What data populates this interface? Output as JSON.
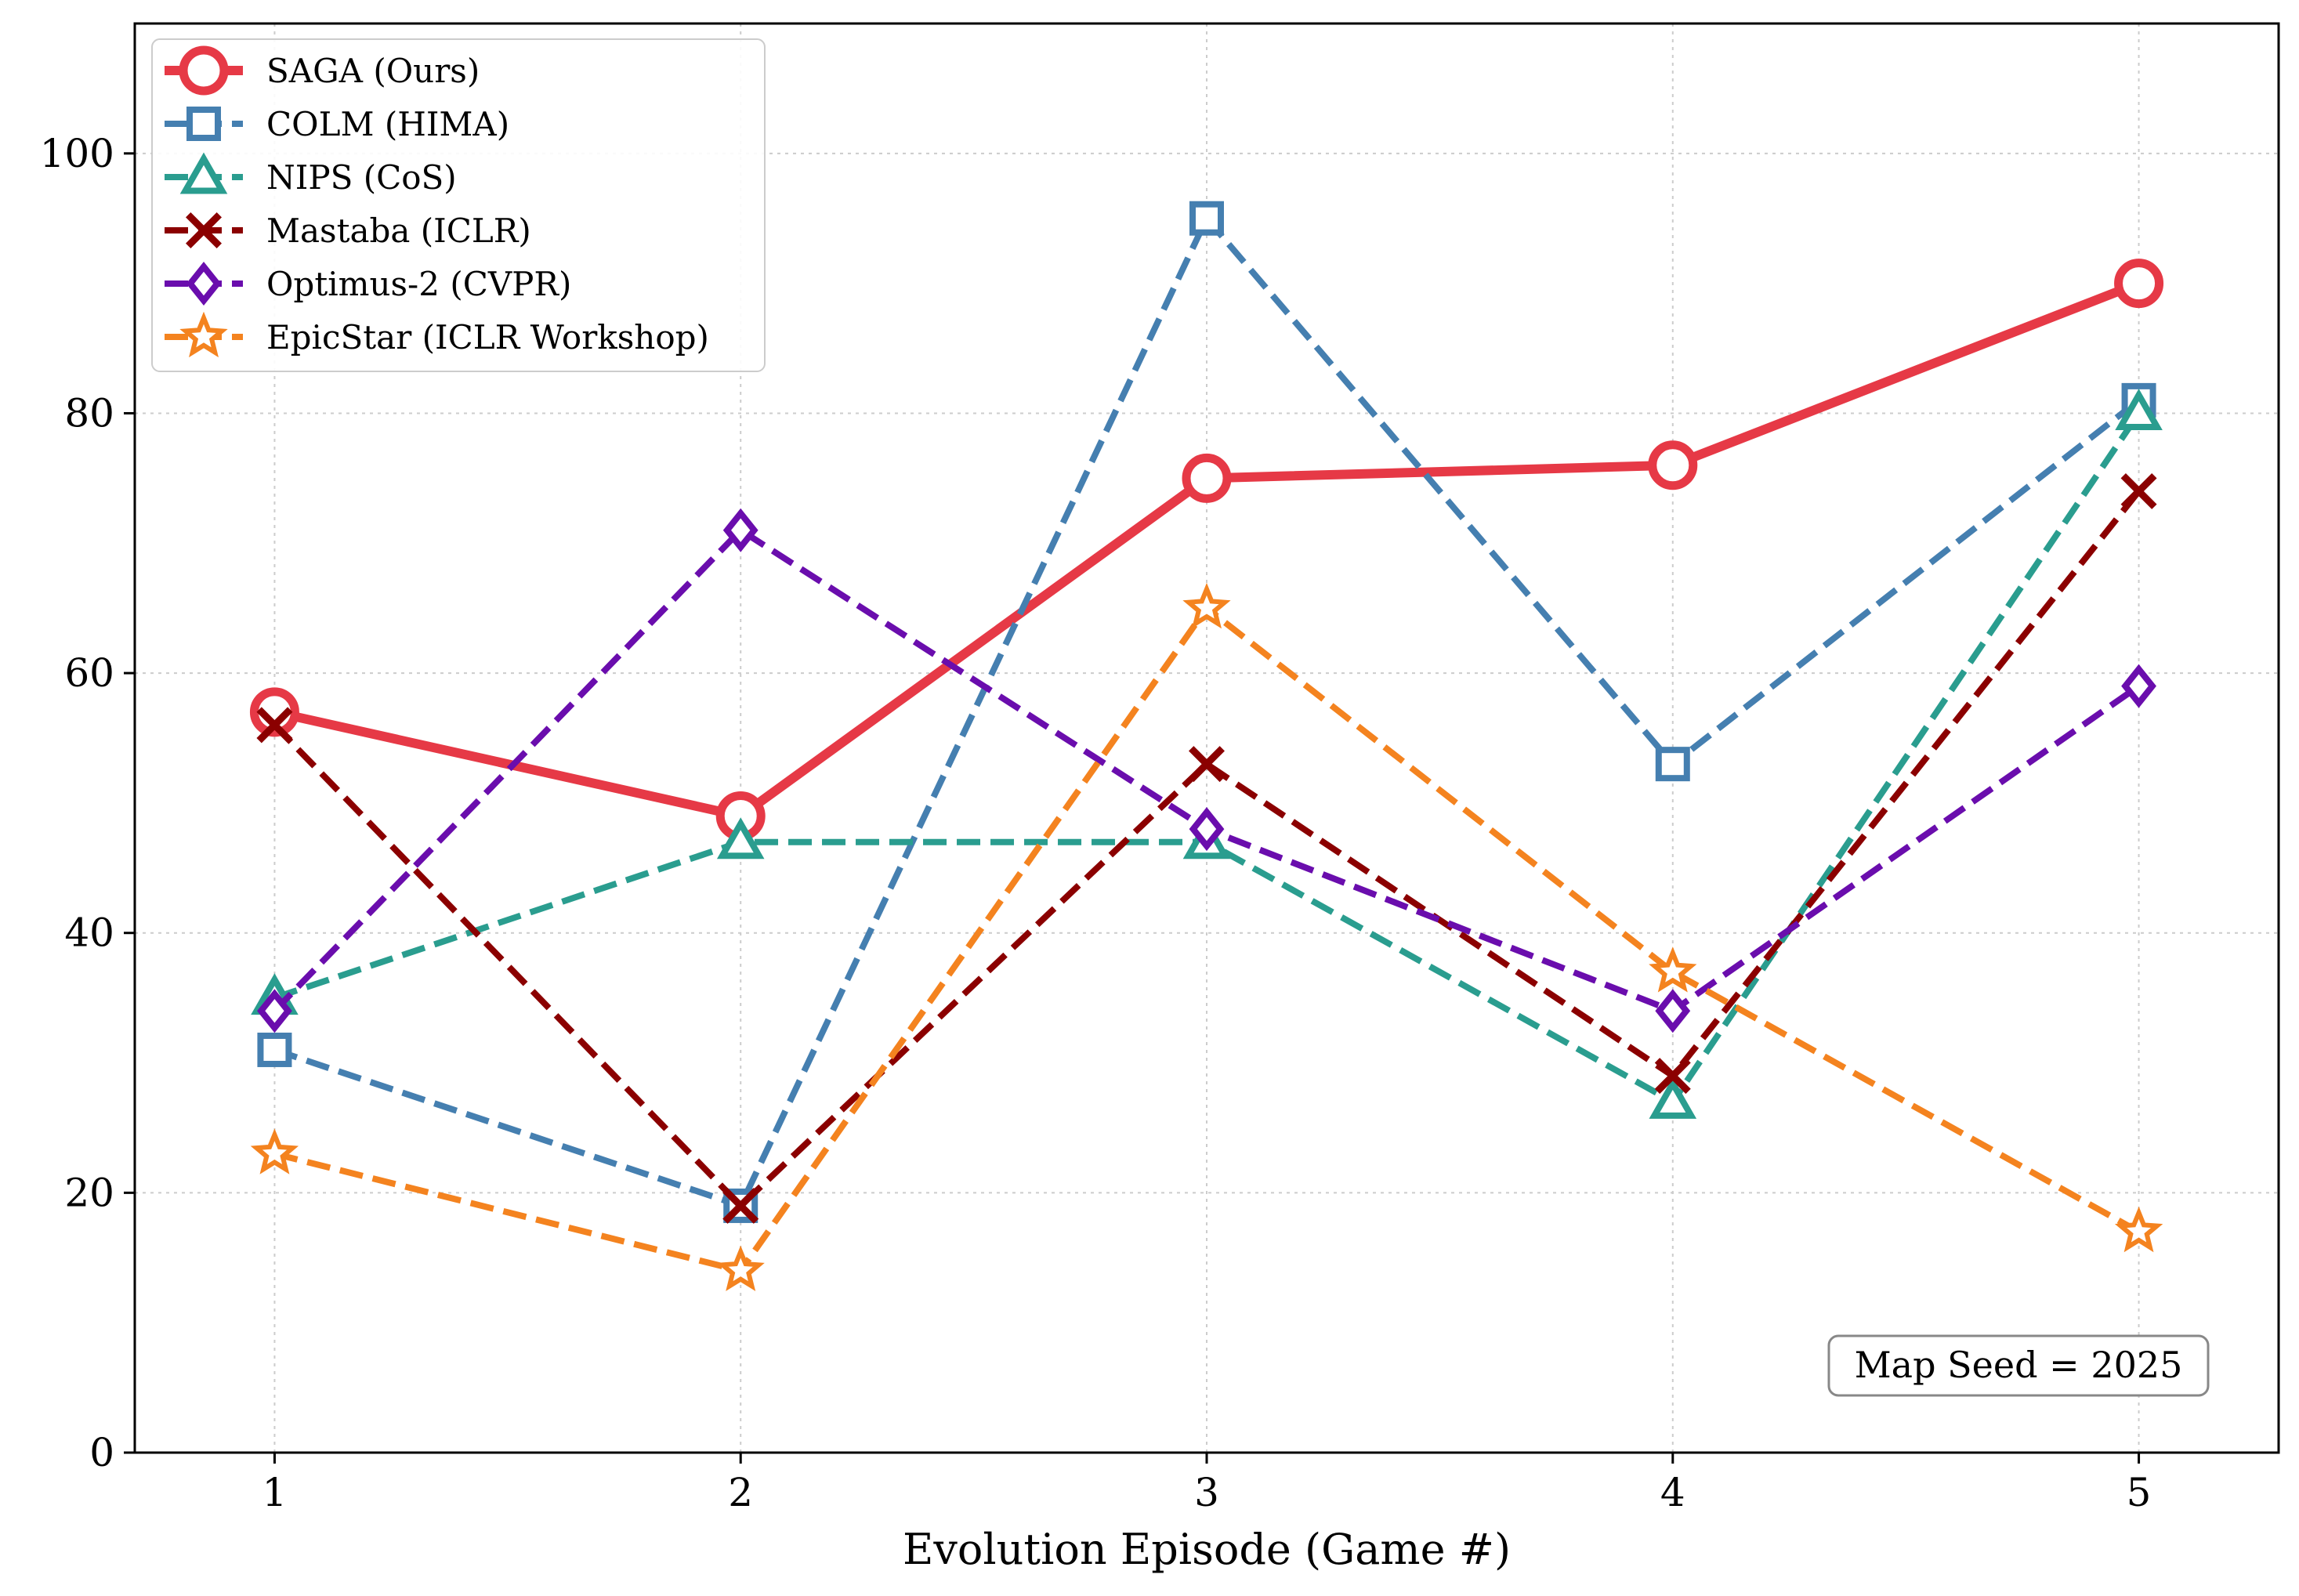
{
  "chart_data": {
    "type": "line",
    "title": "",
    "xlabel": "Evolution Episode (Game #)",
    "ylabel": "",
    "x": [
      1,
      2,
      3,
      4,
      5
    ],
    "x_ticks": [
      "1",
      "2",
      "3",
      "4",
      "5"
    ],
    "xlim": [
      0.7,
      5.3
    ],
    "ylim": [
      0,
      110
    ],
    "y_ticks": [
      "0",
      "20",
      "40",
      "60",
      "80",
      "100"
    ],
    "grid": true,
    "legend_position": "top-left",
    "annotation": "Map Seed = 2025",
    "series": [
      {
        "name": "SAGA (Ours)",
        "values": [
          57,
          49,
          75,
          76,
          90
        ],
        "color": "#e63946",
        "marker": "circle",
        "dash": "solid"
      },
      {
        "name": "COLM (HIMA)",
        "values": [
          31,
          19,
          95,
          53,
          81
        ],
        "color": "#457fb0",
        "marker": "square",
        "dash": "dashed"
      },
      {
        "name": "NIPS (CoS)",
        "values": [
          35,
          47,
          47,
          27,
          80
        ],
        "color": "#2a9d8f",
        "marker": "triangle",
        "dash": "dashed"
      },
      {
        "name": "Mastaba (ICLR)",
        "values": [
          56,
          19,
          53,
          29,
          74
        ],
        "color": "#8b0000",
        "marker": "x",
        "dash": "dashed"
      },
      {
        "name": "Optimus-2 (CVPR)",
        "values": [
          34,
          71,
          48,
          34,
          59
        ],
        "color": "#6a0dad",
        "marker": "diamond",
        "dash": "dashed"
      },
      {
        "name": "EpicStar (ICLR Workshop)",
        "values": [
          23,
          14,
          65,
          37,
          17
        ],
        "color": "#f4831f",
        "marker": "star",
        "dash": "dashed"
      }
    ]
  }
}
